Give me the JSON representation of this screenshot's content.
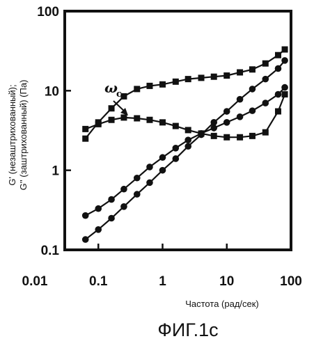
{
  "chart_data": {
    "type": "line",
    "x_scale": "log",
    "y_scale": "log",
    "xlim": [
      0.03,
      100
    ],
    "ylim": [
      0.1,
      100
    ],
    "x_ticks": [
      "0.01",
      "0.1",
      "1",
      "10",
      "100"
    ],
    "y_ticks": [
      "0.1",
      "1",
      "10",
      "100"
    ],
    "xlabel": "Частота (рад/сек)",
    "ylabel_line1": "G' (незаштрихованный);",
    "ylabel_line2": "G'' (заштрихованный) (Па)",
    "annotation_main": "ω",
    "annotation_sub": "c",
    "caption": "ФИГ.1с",
    "grid": false,
    "series": [
      {
        "marker": "square",
        "x": [
          0.063,
          0.1,
          0.16,
          0.25,
          0.4,
          0.63,
          1,
          1.6,
          2.5,
          4,
          6.3,
          10,
          16,
          25,
          40,
          63,
          80
        ],
        "values": [
          2.5,
          4.0,
          6.0,
          8.5,
          10.5,
          11.5,
          12.0,
          13.0,
          14.0,
          14.5,
          15.0,
          15.5,
          17.0,
          18.5,
          22.0,
          28.0,
          33.0
        ]
      },
      {
        "marker": "square",
        "x": [
          0.063,
          0.1,
          0.16,
          0.25,
          0.4,
          0.63,
          1,
          1.6,
          2.5,
          4,
          6.3,
          10,
          16,
          25,
          40,
          63,
          80
        ],
        "values": [
          3.3,
          3.8,
          4.3,
          4.6,
          4.5,
          4.3,
          4.0,
          3.6,
          3.2,
          2.9,
          2.7,
          2.6,
          2.6,
          2.7,
          3.0,
          5.5,
          9.0
        ]
      },
      {
        "marker": "circle",
        "x": [
          0.063,
          0.1,
          0.16,
          0.25,
          0.4,
          0.63,
          1,
          1.6,
          2.5,
          4,
          6.3,
          10,
          16,
          25,
          40,
          63,
          80
        ],
        "values": [
          0.27,
          0.33,
          0.43,
          0.58,
          0.8,
          1.1,
          1.45,
          1.9,
          2.4,
          2.9,
          3.4,
          4.0,
          4.7,
          5.6,
          7.0,
          9.0,
          11.0
        ]
      },
      {
        "marker": "circle",
        "x": [
          0.063,
          0.1,
          0.16,
          0.25,
          0.4,
          0.63,
          1,
          1.6,
          2.5,
          4,
          6.3,
          10,
          16,
          25,
          40,
          63,
          80
        ],
        "values": [
          0.135,
          0.18,
          0.25,
          0.35,
          0.5,
          0.7,
          1.0,
          1.4,
          2.0,
          2.8,
          4.0,
          5.5,
          7.8,
          10.5,
          14.0,
          19.0,
          24.0
        ]
      }
    ]
  }
}
